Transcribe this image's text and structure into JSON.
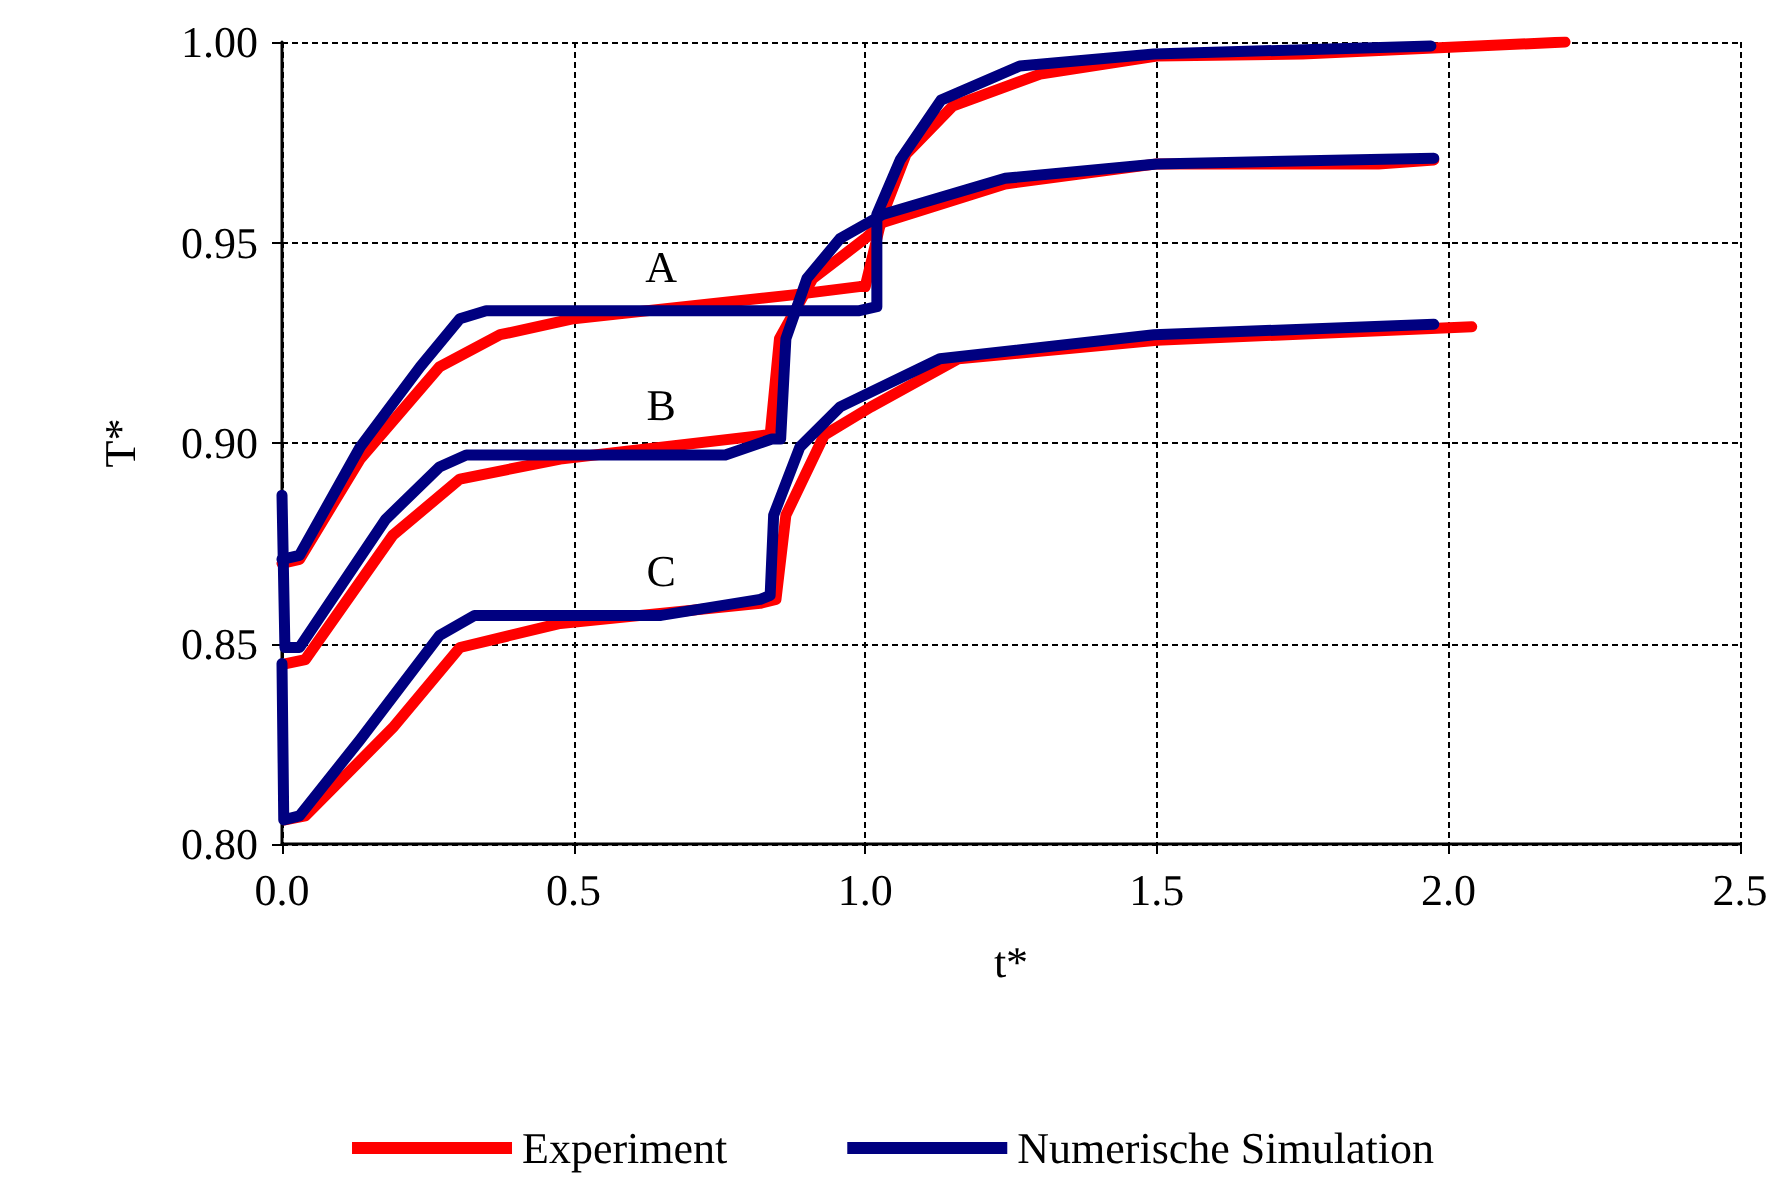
{
  "chart_data": {
    "type": "line",
    "xlabel": "t*",
    "ylabel": "T*",
    "xlim": [
      0,
      2.5
    ],
    "ylim": [
      0.8,
      1.0
    ],
    "xticks": [
      {
        "value": 0,
        "label": "0.0"
      },
      {
        "value": 0.5,
        "label": "0.5"
      },
      {
        "value": 1,
        "label": "1.0"
      },
      {
        "value": 1.5,
        "label": "1.5"
      },
      {
        "value": 2,
        "label": "2.0"
      },
      {
        "value": 2.5,
        "label": "2.5"
      }
    ],
    "yticks": [
      {
        "value": 0.8,
        "label": "0.80"
      },
      {
        "value": 0.85,
        "label": "0.85"
      },
      {
        "value": 0.9,
        "label": "0.90"
      },
      {
        "value": 0.95,
        "label": "0.95"
      },
      {
        "value": 1.0,
        "label": "1.00"
      }
    ],
    "grid": true,
    "legend": "bottom",
    "marker": "none",
    "line_style": "solid",
    "annotations": [
      "A",
      "B",
      "C"
    ],
    "series": [
      {
        "name": "Experiment",
        "color": "#ff0000",
        "x": [
          0,
          0.03,
          0.134,
          0.27,
          0.374,
          0.5,
          0.88,
          0.99,
          1.0,
          1.03,
          1.07,
          1.15,
          1.3,
          1.5,
          1.75,
          2.2
        ],
        "values": [
          0.87,
          0.871,
          0.896,
          0.919,
          0.927,
          0.931,
          0.937,
          0.939,
          0.939,
          0.957,
          0.972,
          0.984,
          0.992,
          0.9965,
          0.997,
          1.0
        ]
      },
      {
        "color": "#ff0000",
        "x": [
          0.007,
          0.04,
          0.19,
          0.305,
          0.477,
          0.83,
          0.837,
          0.853,
          0.91,
          1.0,
          1.03,
          1.24,
          1.5,
          1.88,
          1.975
        ],
        "values": [
          0.845,
          0.846,
          0.877,
          0.891,
          0.896,
          0.902,
          0.902,
          0.926,
          0.941,
          0.951,
          0.955,
          0.9646,
          0.9696,
          0.9696,
          0.9706
        ]
      },
      {
        "color": "#ff0000",
        "x": [
          0.005,
          0.04,
          0.19,
          0.305,
          0.477,
          0.82,
          0.847,
          0.864,
          0.93,
          1.01,
          1.16,
          1.5,
          2.04
        ],
        "values": [
          0.806,
          0.807,
          0.829,
          0.849,
          0.855,
          0.86,
          0.861,
          0.882,
          0.902,
          0.909,
          0.921,
          0.9256,
          0.929
        ]
      },
      {
        "name": "Numerische Simulation",
        "color": "#000080",
        "x": [
          0,
          0.03,
          0.134,
          0.237,
          0.305,
          0.35,
          0.99,
          1.02,
          1.02,
          1.06,
          1.13,
          1.265,
          1.495,
          1.97
        ],
        "values": [
          0.871,
          0.872,
          0.899,
          0.919,
          0.931,
          0.933,
          0.933,
          0.934,
          0.957,
          0.9706,
          0.9855,
          0.994,
          0.997,
          0.999
        ]
      },
      {
        "color": "#000080",
        "x": [
          0,
          0.005,
          0.03,
          0.178,
          0.27,
          0.316,
          0.76,
          0.84,
          0.855,
          0.864,
          0.9,
          0.957,
          1.03,
          1.24,
          1.5,
          1.975
        ],
        "values": [
          0.887,
          0.849,
          0.849,
          0.881,
          0.894,
          0.897,
          0.897,
          0.901,
          0.901,
          0.926,
          0.941,
          0.951,
          0.957,
          0.966,
          0.9696,
          0.971
        ]
      },
      {
        "color": "#000080",
        "x": [
          0,
          0.003,
          0.03,
          0.134,
          0.27,
          0.33,
          0.65,
          0.82,
          0.837,
          0.843,
          0.888,
          0.957,
          1.128,
          1.495,
          1.975
        ],
        "values": [
          0.845,
          0.806,
          0.807,
          0.826,
          0.852,
          0.857,
          0.857,
          0.861,
          0.862,
          0.882,
          0.899,
          0.909,
          0.921,
          0.927,
          0.9296
        ]
      }
    ]
  }
}
